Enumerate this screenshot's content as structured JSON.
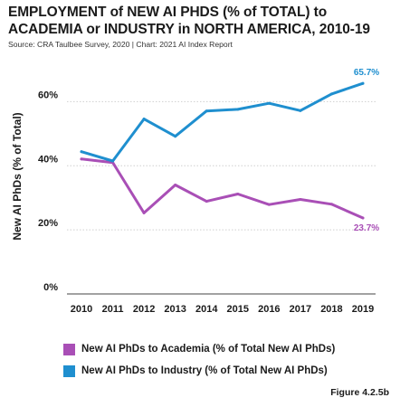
{
  "header": {
    "title": "EMPLOYMENT of NEW AI PHDS (% of TOTAL) to ACADEMIA or INDUSTRY in NORTH AMERICA, 2010-19",
    "source": "Source: CRA Taulbee Survey, 2020 | Chart: 2021 AI Index Report"
  },
  "figure_label": "Figure 4.2.5b",
  "chart_data": {
    "type": "line",
    "title": "EMPLOYMENT of NEW AI PHDS (% of TOTAL) to ACADEMIA or INDUSTRY in NORTH AMERICA, 2010-19",
    "xlabel": "",
    "ylabel": "New AI PhDs (% of Total)",
    "x": [
      "2010",
      "2011",
      "2012",
      "2013",
      "2014",
      "2015",
      "2016",
      "2017",
      "2018",
      "2019"
    ],
    "ylim": [
      0,
      70
    ],
    "yticks": [
      0,
      20,
      40,
      60
    ],
    "ytick_labels": [
      "0%",
      "20%",
      "40%",
      "60%"
    ],
    "grid": true,
    "legend": "bottom",
    "series": [
      {
        "name": "New AI PhDs to Academia (% of Total New AI PhDs)",
        "color": "#a94fb6",
        "values": [
          42.1,
          41.0,
          25.3,
          34.0,
          28.9,
          31.2,
          27.9,
          29.5,
          28.0,
          23.7
        ],
        "end_label": "23.7%"
      },
      {
        "name": "New AI PhDs to Industry (% of Total New AI PhDs)",
        "color": "#1f8fcf",
        "values": [
          44.4,
          41.5,
          54.6,
          49.2,
          57.1,
          57.6,
          59.5,
          57.2,
          62.4,
          65.7
        ],
        "end_label": "65.7%"
      }
    ]
  }
}
